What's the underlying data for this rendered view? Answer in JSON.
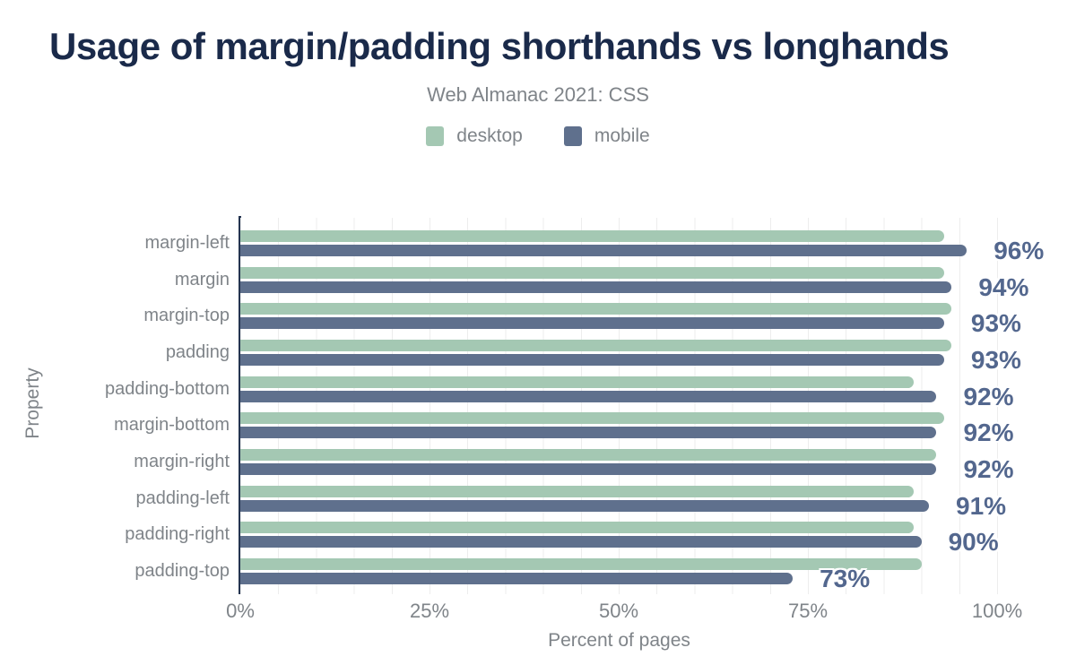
{
  "header": {
    "title": "Usage of margin/padding shorthands vs longhands",
    "subtitle": "Web Almanac 2021: CSS"
  },
  "colors": {
    "title": "#1a2a4a",
    "desktop": "#a4c8b3",
    "mobile": "#5f708d",
    "value_label": "#53678e",
    "axis_line": "#243450",
    "muted_text": "#7f8489",
    "gridline": "#ededed"
  },
  "chart_data": {
    "type": "bar",
    "orientation": "horizontal",
    "title": "Usage of margin/padding shorthands vs longhands",
    "subtitle": "Web Almanac 2021: CSS",
    "categories": [
      "margin-left",
      "margin",
      "margin-top",
      "padding",
      "padding-bottom",
      "margin-bottom",
      "margin-right",
      "padding-left",
      "padding-right",
      "padding-top"
    ],
    "series": [
      {
        "name": "desktop",
        "color": "#a4c8b3",
        "values": [
          93,
          93,
          94,
          94,
          89,
          93,
          92,
          89,
          89,
          90
        ]
      },
      {
        "name": "mobile",
        "color": "#5f708d",
        "values": [
          96,
          94,
          93,
          93,
          92,
          92,
          92,
          91,
          90,
          73
        ]
      }
    ],
    "value_labels": [
      "96%",
      "94%",
      "93%",
      "93%",
      "92%",
      "92%",
      "92%",
      "91%",
      "90%",
      "73%"
    ],
    "value_labels_series": "mobile",
    "xlabel": "Percent of pages",
    "ylabel": "Property",
    "x_ticks": [
      "0%",
      "25%",
      "50%",
      "75%",
      "100%"
    ],
    "xlim": [
      0,
      100
    ],
    "grid": "vertical lines every 5%",
    "legend_position": "top center"
  }
}
